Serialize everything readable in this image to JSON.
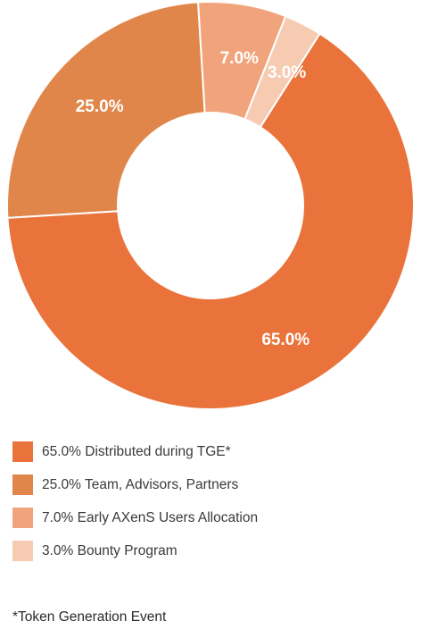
{
  "chart_data": {
    "type": "pie",
    "variant": "donut",
    "start_angle_deg": -57.5,
    "direction": "clockwise",
    "slices": [
      {
        "label": "Distributed during TGE*",
        "value": 65.0,
        "display": "65.0%",
        "legend_text": "65.0% Distributed during TGE*",
        "color": "#e9733a"
      },
      {
        "label": "Team, Advisors, Partners",
        "value": 25.0,
        "display": "25.0%",
        "legend_text": "25.0% Team, Advisors, Partners",
        "color": "#e0864a"
      },
      {
        "label": "Early AXenS Users Allocation",
        "value": 7.0,
        "display": "7.0%",
        "legend_text": "7.0% Early AXenS Users Allocation",
        "color": "#f1a47c"
      },
      {
        "label": "Bounty Program",
        "value": 3.0,
        "display": "3.0%",
        "legend_text": "3.0% Bounty Program",
        "color": "#f6cbb2"
      }
    ],
    "draw_order": [
      1,
      2,
      3,
      0
    ],
    "legend_position": "bottom-left"
  },
  "footnote": "*Token Generation Event"
}
